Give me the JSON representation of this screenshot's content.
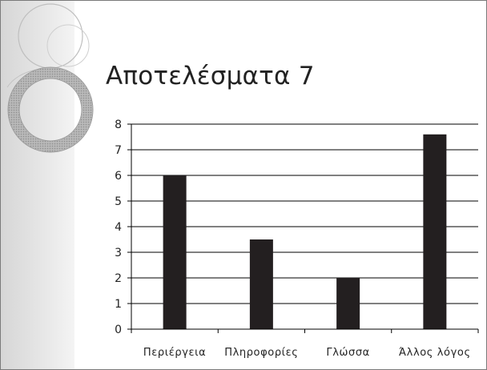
{
  "slide": {
    "title": "Αποτελέσματα 7"
  },
  "colors": {
    "bar": "#231f20",
    "grid": "#000000",
    "text": "#222222",
    "side_band": "#dcdcdc"
  },
  "icons": [
    "ring-ornament-icon"
  ],
  "chart_data": {
    "type": "bar",
    "title": "",
    "xlabel": "",
    "ylabel": "",
    "categories": [
      "Περιέργεια",
      "Πληροφορίες",
      "Γλώσσα",
      "Άλλος λόγος"
    ],
    "values": [
      6.0,
      3.5,
      2.0,
      7.6
    ],
    "ylim": [
      0,
      8
    ],
    "yticks": [
      0,
      1,
      2,
      3,
      4,
      5,
      6,
      7,
      8
    ],
    "grid": true,
    "legend": "none"
  }
}
